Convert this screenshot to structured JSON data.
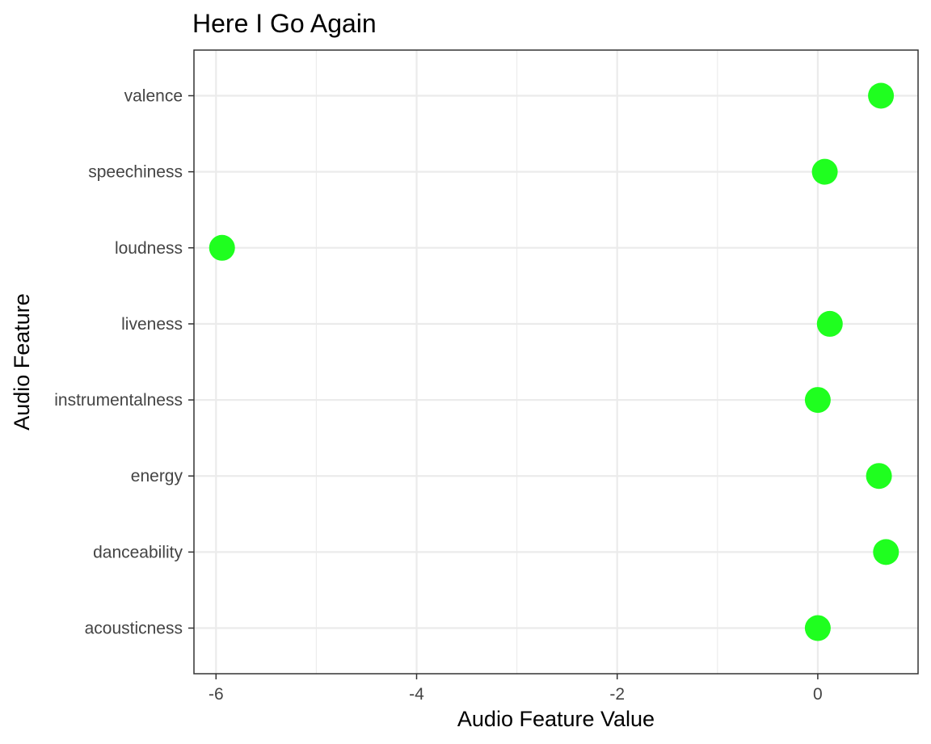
{
  "chart_data": {
    "type": "scatter",
    "title": "Here I Go Again",
    "xlabel": "Audio Feature Value",
    "ylabel": "Audio Feature",
    "xlim": [
      -6.22,
      1.0
    ],
    "x_ticks": [
      -6,
      -4,
      -2,
      0
    ],
    "x_tick_labels": [
      "-6",
      "-4",
      "-2",
      "0"
    ],
    "x_minor_ticks": [
      -5,
      -3,
      -1
    ],
    "categories": [
      "acousticness",
      "danceability",
      "energy",
      "instrumentalness",
      "liveness",
      "loudness",
      "speechiness",
      "valence"
    ],
    "points": [
      {
        "category": "acousticness",
        "value": 0.0
      },
      {
        "category": "danceability",
        "value": 0.68
      },
      {
        "category": "energy",
        "value": 0.61
      },
      {
        "category": "instrumentalness",
        "value": 0.0
      },
      {
        "category": "liveness",
        "value": 0.12
      },
      {
        "category": "loudness",
        "value": -5.94
      },
      {
        "category": "speechiness",
        "value": 0.07
      },
      {
        "category": "valence",
        "value": 0.63
      }
    ],
    "point_color": "#1fff1f",
    "grid": true,
    "legend": "none"
  }
}
